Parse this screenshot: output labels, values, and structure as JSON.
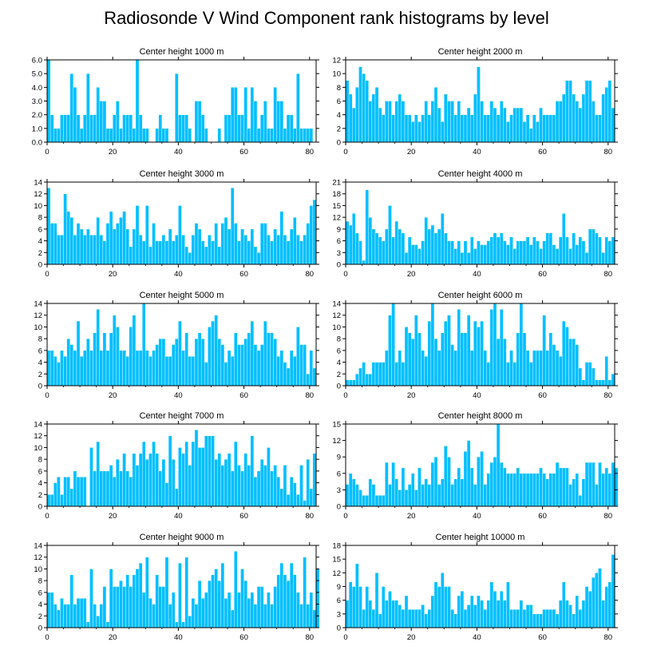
{
  "page_title": "Radiosonde V Wind Component rank histograms by level",
  "colors": {
    "bar_fill": "#00BFFF",
    "bar_edge": "#ffffff",
    "axis": "#000000"
  },
  "chart_data": [
    {
      "type": "bar",
      "title": "Center height 1000 m",
      "xlim": [
        0,
        82
      ],
      "ylim": [
        0,
        6
      ],
      "xticks": [
        "0",
        "20",
        "40",
        "60",
        "80"
      ],
      "yticks": [
        "0.0",
        "1.0",
        "2.0",
        "3.0",
        "4.0",
        "5.0",
        "6.0"
      ],
      "values": [
        6,
        2,
        1,
        1,
        2,
        2,
        2,
        5,
        4,
        2,
        1,
        2,
        5,
        2,
        2,
        4,
        3,
        3,
        1,
        1,
        2,
        3,
        1,
        2,
        2,
        2,
        1,
        6,
        2,
        1,
        1,
        0,
        0,
        1,
        2,
        1,
        1,
        0,
        0,
        5,
        2,
        2,
        2,
        1,
        0,
        3,
        3,
        2,
        1,
        0,
        0,
        0,
        1,
        0,
        2,
        2,
        4,
        4,
        2,
        2,
        4,
        1,
        4,
        3,
        1,
        2,
        3,
        1,
        1,
        4,
        3,
        3,
        1,
        2,
        2,
        1,
        5,
        1,
        1,
        1,
        1
      ]
    },
    {
      "type": "bar",
      "title": "Center height 2000 m",
      "xlim": [
        0,
        82
      ],
      "ylim": [
        0,
        12
      ],
      "xticks": [
        "0",
        "20",
        "40",
        "60",
        "80"
      ],
      "yticks": [
        "0",
        "2",
        "4",
        "6",
        "8",
        "10",
        "12"
      ],
      "values": [
        9,
        7,
        5,
        8,
        11,
        10,
        9,
        6,
        7,
        8,
        5,
        4,
        6,
        6,
        4,
        6,
        7,
        6,
        4,
        4,
        3,
        4,
        3,
        4,
        6,
        4,
        6,
        8,
        5,
        3,
        7,
        6,
        6,
        4,
        6,
        4,
        4,
        5,
        4,
        7,
        11,
        6,
        4,
        4,
        6,
        5,
        4,
        6,
        5,
        3,
        4,
        5,
        5,
        5,
        3,
        4,
        2,
        4,
        3,
        5,
        4,
        4,
        4,
        4,
        6,
        6,
        7,
        9,
        9,
        7,
        6,
        5,
        7,
        9,
        9,
        6,
        4,
        4,
        7,
        8,
        9,
        5
      ]
    },
    {
      "type": "bar",
      "title": "Center height 3000 m",
      "xlim": [
        0,
        82
      ],
      "ylim": [
        0,
        14
      ],
      "xticks": [
        "0",
        "20",
        "40",
        "60",
        "80"
      ],
      "yticks": [
        "0",
        "2",
        "4",
        "6",
        "8",
        "10",
        "12",
        "14"
      ],
      "values": [
        13,
        7,
        7,
        5,
        5,
        12,
        9,
        8,
        5,
        7,
        6,
        5,
        6,
        5,
        5,
        8,
        5,
        4,
        7,
        9,
        6,
        7,
        8,
        9,
        6,
        3,
        6,
        10,
        5,
        4,
        10,
        3,
        7,
        4,
        4,
        5,
        4,
        6,
        4,
        5,
        10,
        5,
        3,
        2,
        5,
        7,
        6,
        4,
        3,
        5,
        4,
        7,
        3,
        7,
        8,
        6,
        13,
        7,
        4,
        6,
        5,
        4,
        6,
        3,
        2,
        7,
        7,
        5,
        4,
        6,
        5,
        9,
        5,
        4,
        6,
        8,
        5,
        4,
        5,
        7,
        10,
        11
      ]
    },
    {
      "type": "bar",
      "title": "Center height 4000 m",
      "xlim": [
        0,
        82
      ],
      "ylim": [
        0,
        21
      ],
      "xticks": [
        "0",
        "20",
        "40",
        "60",
        "80"
      ],
      "yticks": [
        "0",
        "3",
        "6",
        "9",
        "12",
        "15",
        "18",
        "21"
      ],
      "values": [
        11,
        10,
        13,
        8,
        6,
        1,
        19,
        12,
        9,
        8,
        7,
        6,
        9,
        15,
        7,
        11,
        9,
        8,
        3,
        7,
        5,
        5,
        4,
        6,
        12,
        9,
        10,
        8,
        9,
        13,
        8,
        6,
        6,
        4,
        6,
        3,
        6,
        3,
        7,
        4,
        6,
        5,
        5,
        6,
        7,
        8,
        7,
        8,
        6,
        5,
        7,
        4,
        6,
        6,
        6,
        7,
        5,
        7,
        6,
        4,
        6,
        8,
        8,
        5,
        4,
        7,
        13,
        7,
        4,
        8,
        5,
        7,
        6,
        3,
        9,
        9,
        8,
        7,
        3,
        7,
        6,
        7
      ]
    },
    {
      "type": "bar",
      "title": "Center height 5000 m",
      "xlim": [
        0,
        82
      ],
      "ylim": [
        0,
        14
      ],
      "xticks": [
        "0",
        "20",
        "40",
        "60",
        "80"
      ],
      "yticks": [
        "0",
        "2",
        "4",
        "6",
        "8",
        "10",
        "12",
        "14"
      ],
      "values": [
        6,
        6,
        5,
        4,
        6,
        5,
        8,
        7,
        6,
        11,
        5,
        6,
        8,
        6,
        9,
        13,
        6,
        9,
        6,
        9,
        12,
        10,
        6,
        6,
        5,
        10,
        12,
        6,
        6,
        14,
        6,
        5,
        6,
        7,
        8,
        8,
        5,
        5,
        7,
        8,
        11,
        6,
        9,
        5,
        5,
        8,
        9,
        8,
        4,
        10,
        11,
        12,
        8,
        7,
        4,
        6,
        5,
        9,
        7,
        7,
        8,
        9,
        11,
        7,
        6,
        7,
        11,
        9,
        9,
        8,
        5,
        6,
        4,
        3,
        6,
        5,
        10,
        7,
        7,
        2,
        6,
        3
      ]
    },
    {
      "type": "bar",
      "title": "Center height 6000 m",
      "xlim": [
        0,
        82
      ],
      "ylim": [
        0,
        14
      ],
      "xticks": [
        "0",
        "20",
        "40",
        "60",
        "80"
      ],
      "yticks": [
        "0",
        "2",
        "4",
        "6",
        "8",
        "10",
        "12",
        "14"
      ],
      "values": [
        1,
        1,
        1,
        2,
        3,
        4,
        2,
        2,
        4,
        4,
        4,
        4,
        6,
        12,
        14,
        4,
        6,
        4,
        10,
        9,
        8,
        12,
        9,
        6,
        5,
        11,
        14,
        8,
        6,
        9,
        11,
        12,
        7,
        6,
        13,
        9,
        9,
        12,
        6,
        11,
        10,
        11,
        6,
        4,
        13,
        14,
        8,
        13,
        8,
        4,
        6,
        4,
        9,
        14,
        9,
        6,
        4,
        6,
        6,
        6,
        12,
        6,
        9,
        7,
        6,
        5,
        11,
        10,
        8,
        8,
        7,
        3,
        1,
        4,
        4,
        3,
        1,
        1,
        1,
        5,
        1,
        2
      ]
    },
    {
      "type": "bar",
      "title": "Center height 7000 m",
      "xlim": [
        0,
        82
      ],
      "ylim": [
        0,
        14
      ],
      "xticks": [
        "0",
        "20",
        "40",
        "60",
        "80"
      ],
      "yticks": [
        "0",
        "2",
        "4",
        "6",
        "8",
        "10",
        "12",
        "14"
      ],
      "values": [
        2,
        2,
        4,
        5,
        2,
        5,
        5,
        3,
        6,
        5,
        5,
        5,
        0,
        10,
        6,
        11,
        6,
        6,
        6,
        7,
        5,
        8,
        6,
        9,
        6,
        5,
        9,
        7,
        9,
        11,
        8,
        9,
        11,
        9,
        6,
        8,
        4,
        12,
        8,
        3,
        10,
        9,
        11,
        7,
        11,
        13,
        10,
        10,
        12,
        12,
        12,
        8,
        9,
        7,
        8,
        9,
        6,
        11,
        7,
        6,
        9,
        7,
        12,
        5,
        6,
        8,
        7,
        10,
        6,
        7,
        5,
        3,
        7,
        2,
        5,
        4,
        2,
        7,
        1,
        8,
        3,
        9
      ]
    },
    {
      "type": "bar",
      "title": "Center height 8000 m",
      "xlim": [
        0,
        82
      ],
      "ylim": [
        0,
        15
      ],
      "xticks": [
        "0",
        "20",
        "40",
        "60",
        "80"
      ],
      "yticks": [
        "0",
        "3",
        "6",
        "9",
        "12",
        "15"
      ],
      "values": [
        4,
        6,
        5,
        4,
        3,
        2,
        2,
        5,
        4,
        2,
        2,
        2,
        8,
        4,
        8,
        5,
        3,
        7,
        3,
        4,
        6,
        3,
        7,
        4,
        5,
        4,
        8,
        9,
        4,
        5,
        11,
        9,
        4,
        5,
        7,
        5,
        10,
        12,
        7,
        4,
        9,
        10,
        4,
        6,
        8,
        9,
        15,
        8,
        7,
        6,
        6,
        6,
        7,
        6,
        6,
        6,
        6,
        6,
        6,
        7,
        6,
        5,
        6,
        6,
        8,
        7,
        7,
        7,
        4,
        5,
        6,
        2,
        5,
        8,
        8,
        8,
        4,
        8,
        6,
        7,
        6,
        8,
        7
      ]
    },
    {
      "type": "bar",
      "title": "Center height 9000 m",
      "xlim": [
        0,
        82
      ],
      "ylim": [
        0,
        14
      ],
      "xticks": [
        "0",
        "20",
        "40",
        "60",
        "80"
      ],
      "yticks": [
        "0",
        "2",
        "4",
        "6",
        "8",
        "10",
        "12",
        "14"
      ],
      "values": [
        6,
        6,
        4,
        3,
        5,
        4,
        4,
        9,
        4,
        5,
        5,
        5,
        1,
        10,
        4,
        2,
        4,
        7,
        1,
        10,
        7,
        7,
        8,
        7,
        9,
        7,
        9,
        10,
        11,
        6,
        12,
        5,
        4,
        9,
        7,
        7,
        12,
        4,
        6,
        1,
        11,
        1,
        12,
        2,
        5,
        4,
        8,
        5,
        6,
        8,
        9,
        10,
        8,
        11,
        5,
        6,
        3,
        13,
        6,
        10,
        8,
        5,
        6,
        4,
        7,
        7,
        4,
        6,
        4,
        7,
        9,
        11,
        9,
        8,
        11,
        9,
        6,
        4,
        12,
        4,
        6,
        3,
        10
      ]
    },
    {
      "type": "bar",
      "title": "Center height 10000 m",
      "xlim": [
        0,
        82
      ],
      "ylim": [
        0,
        18
      ],
      "xticks": [
        "0",
        "20",
        "40",
        "60",
        "80"
      ],
      "yticks": [
        "0",
        "3",
        "6",
        "9",
        "12",
        "15",
        "18"
      ],
      "values": [
        6,
        10,
        9,
        14,
        9,
        4,
        9,
        6,
        4,
        12,
        3,
        9,
        6,
        8,
        6,
        6,
        5,
        4,
        7,
        4,
        4,
        4,
        4,
        5,
        3,
        4,
        7,
        10,
        9,
        12,
        9,
        9,
        4,
        3,
        7,
        8,
        4,
        5,
        7,
        5,
        7,
        6,
        4,
        6,
        10,
        8,
        6,
        8,
        6,
        10,
        4,
        4,
        4,
        6,
        4,
        5,
        5,
        3,
        3,
        3,
        4,
        4,
        4,
        4,
        3,
        6,
        10,
        6,
        5,
        3,
        7,
        4,
        6,
        9,
        8,
        11,
        12,
        13,
        6,
        9,
        10,
        16
      ]
    }
  ]
}
